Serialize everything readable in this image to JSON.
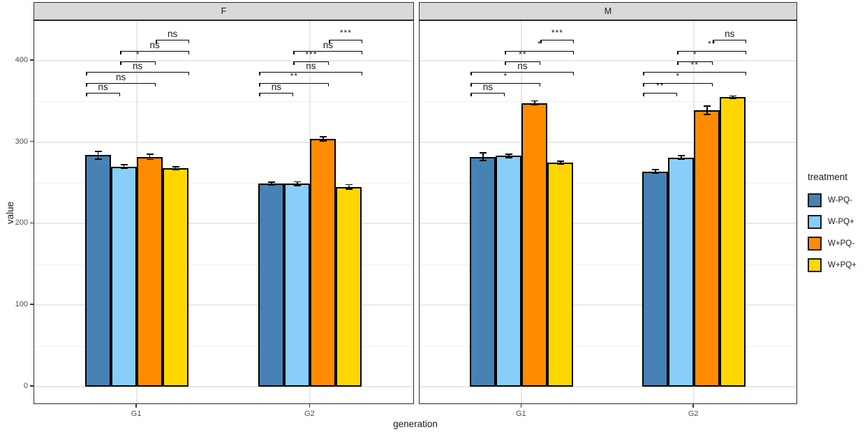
{
  "figure": {
    "xlabel": "generation",
    "ylabel": "value"
  },
  "legend": {
    "title": "treatment",
    "items": [
      {
        "label": "W-PQ-",
        "color": "#4682B4"
      },
      {
        "label": "W-PQ+",
        "color": "#87CEFA"
      },
      {
        "label": "W+PQ-",
        "color": "#FF8C00"
      },
      {
        "label": "W+PQ+",
        "color": "#FFD700"
      }
    ]
  },
  "chart_data": {
    "type": "bar",
    "title": "",
    "xlabel": "generation",
    "ylabel": "value",
    "legend_title": "treatment",
    "legend_position": "right",
    "series_names": [
      "W-PQ-",
      "W-PQ+",
      "W+PQ-",
      "W+PQ+"
    ],
    "colors": [
      "#4682B4",
      "#87CEFA",
      "#FF8C00",
      "#FFD700"
    ],
    "categories": [
      "G1",
      "G2"
    ],
    "yticks": [
      0,
      100,
      200,
      300,
      400
    ],
    "yminor": [
      50,
      150,
      250,
      350
    ],
    "ylim": [
      0,
      455
    ],
    "grid": true,
    "error_bars": true,
    "facets": [
      {
        "label": "F",
        "groups": [
          {
            "category": "G1",
            "values": [
              284,
              270,
              282,
              268
            ],
            "errors": [
              4,
              1.5,
              2.5,
              1
            ],
            "significance": [
              {
                "bars": [
                  1,
                  2
                ],
                "label": "ns"
              },
              {
                "bars": [
                  1,
                  3
                ],
                "label": "ns"
              },
              {
                "bars": [
                  1,
                  4
                ],
                "label": "ns"
              },
              {
                "bars": [
                  2,
                  3
                ],
                "label": "*"
              },
              {
                "bars": [
                  2,
                  4
                ],
                "label": "ns"
              },
              {
                "bars": [
                  3,
                  4
                ],
                "label": "ns"
              }
            ]
          },
          {
            "category": "G2",
            "values": [
              249,
              249,
              304,
              245
            ],
            "errors": [
              1,
              1.5,
              2,
              2
            ],
            "significance": [
              {
                "bars": [
                  1,
                  2
                ],
                "label": "ns"
              },
              {
                "bars": [
                  1,
                  3
                ],
                "label": "**"
              },
              {
                "bars": [
                  1,
                  4
                ],
                "label": "ns"
              },
              {
                "bars": [
                  2,
                  3
                ],
                "label": "***"
              },
              {
                "bars": [
                  2,
                  4
                ],
                "label": "ns"
              },
              {
                "bars": [
                  3,
                  4
                ],
                "label": "***"
              }
            ]
          }
        ]
      },
      {
        "label": "M",
        "groups": [
          {
            "category": "G1",
            "values": [
              282,
              283,
              348,
              275
            ],
            "errors": [
              4,
              1.5,
              2,
              1
            ],
            "significance": [
              {
                "bars": [
                  1,
                  2
                ],
                "label": "ns"
              },
              {
                "bars": [
                  1,
                  3
                ],
                "label": "*"
              },
              {
                "bars": [
                  1,
                  4
                ],
                "label": "ns"
              },
              {
                "bars": [
                  2,
                  3
                ],
                "label": "**"
              },
              {
                "bars": [
                  2,
                  4
                ],
                "label": "*"
              },
              {
                "bars": [
                  3,
                  4
                ],
                "label": "***"
              }
            ]
          },
          {
            "category": "G2",
            "values": [
              264,
              281,
              339,
              355
            ],
            "errors": [
              1.5,
              1.5,
              4.5,
              1
            ],
            "significance": [
              {
                "bars": [
                  1,
                  2
                ],
                "label": "**"
              },
              {
                "bars": [
                  1,
                  3
                ],
                "label": "*"
              },
              {
                "bars": [
                  1,
                  4
                ],
                "label": "**"
              },
              {
                "bars": [
                  2,
                  3
                ],
                "label": "*"
              },
              {
                "bars": [
                  2,
                  4
                ],
                "label": "**"
              },
              {
                "bars": [
                  3,
                  4
                ],
                "label": "ns"
              }
            ]
          }
        ]
      }
    ]
  }
}
